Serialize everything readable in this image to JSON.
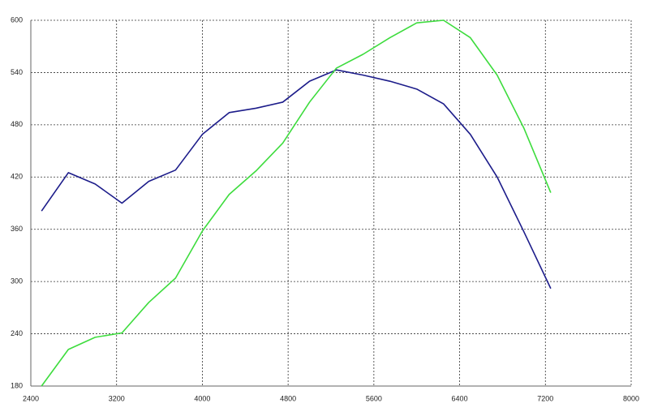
{
  "chart_data": {
    "type": "line",
    "x": [
      2500,
      2750,
      3000,
      3250,
      3500,
      3750,
      4000,
      4250,
      4500,
      4750,
      5000,
      5250,
      5500,
      5750,
      6000,
      6250,
      6500,
      6750,
      7000,
      7250
    ],
    "series": [
      {
        "color": "#1c1c8a",
        "values": [
          381,
          425,
          412,
          390,
          415,
          428,
          469,
          494,
          499,
          506,
          530,
          543,
          537,
          530,
          521,
          504,
          469,
          420,
          357,
          292
        ]
      },
      {
        "color": "#3ddc3d",
        "values": [
          180,
          222,
          236,
          241,
          276,
          304,
          358,
          400,
          427,
          459,
          506,
          545,
          561,
          580,
          597,
          600,
          580,
          537,
          476,
          402
        ]
      }
    ],
    "xlim": [
      2400,
      8000
    ],
    "xticks": [
      2400,
      3200,
      4000,
      4800,
      5600,
      6400,
      7200,
      8000
    ],
    "ylim": [
      180,
      600
    ],
    "yticks": [
      180,
      240,
      300,
      360,
      420,
      480,
      540,
      600
    ],
    "grid": true
  }
}
